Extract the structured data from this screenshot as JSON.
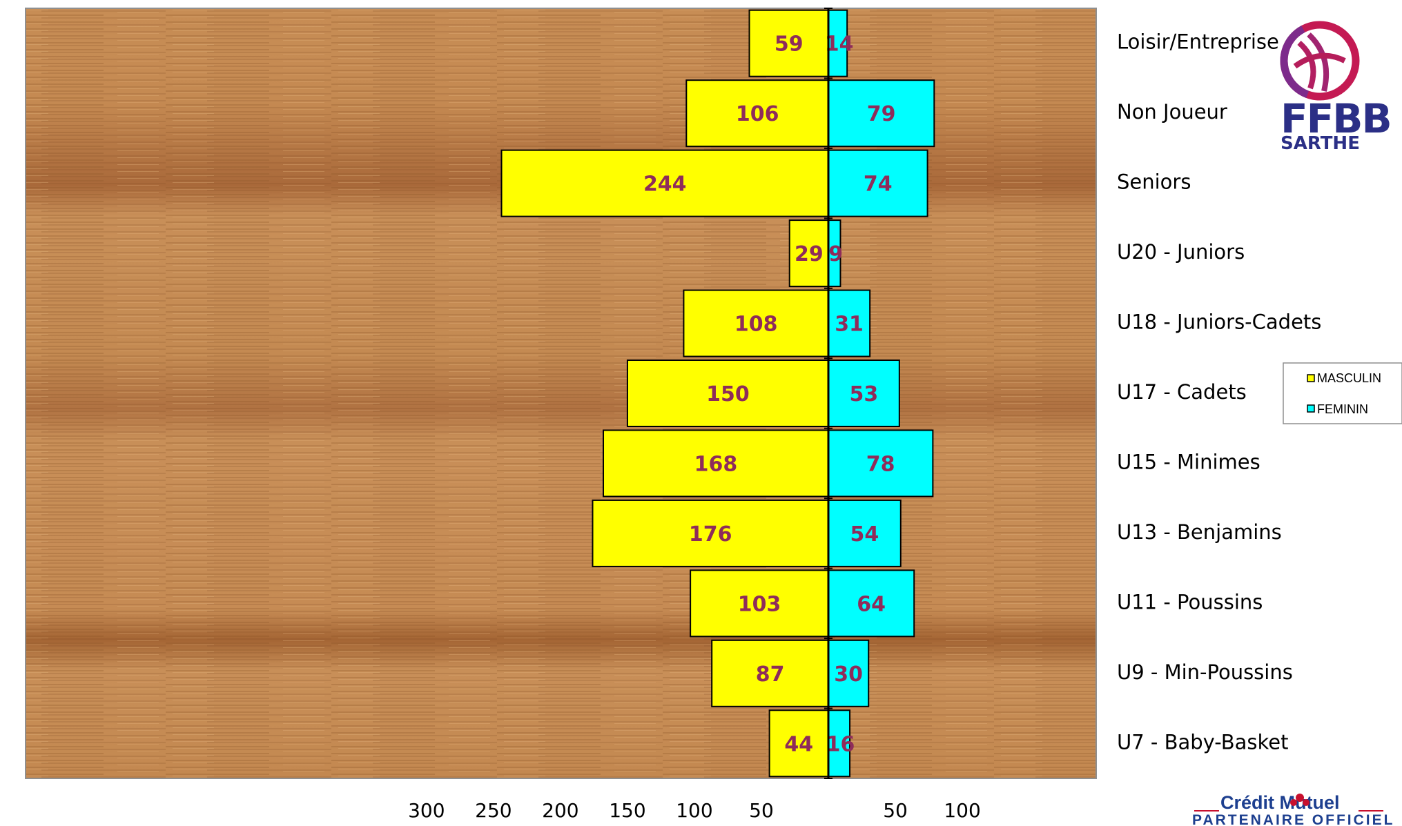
{
  "chart_data": {
    "type": "bar",
    "orientation": "horizontal-population-pyramid",
    "categories": [
      "Loisir/Entreprise",
      "Non Joueur",
      "Seniors",
      "U20 - Juniors",
      "U18 - Juniors-Cadets",
      "U17 - Cadets",
      "U15 - Minimes",
      "U13 - Benjamins",
      "U11 - Poussins",
      "U9 - Min-Poussins",
      "U7 - Baby-Basket"
    ],
    "series": [
      {
        "name": "MASCULIN",
        "color": "#ffff00",
        "side": "left",
        "values": [
          59,
          106,
          244,
          29,
          108,
          150,
          168,
          176,
          103,
          87,
          44
        ]
      },
      {
        "name": "FEMININ",
        "color": "#00ffff",
        "side": "right",
        "values": [
          14,
          79,
          74,
          9,
          31,
          53,
          78,
          54,
          64,
          30,
          16
        ]
      }
    ],
    "x_left_ticks": [
      "300",
      "250",
      "200",
      "150",
      "100",
      "50"
    ],
    "x_right_ticks": [
      "50",
      "100"
    ],
    "xlim_left": [
      0,
      300
    ],
    "xlim_right": [
      0,
      100
    ],
    "legend_position": "right",
    "plot_background": "wood-texture"
  },
  "logos": {
    "ffbb_text": "FFBB",
    "ffbb_sub": "SARTHE",
    "ffbb_icon": "basketball-icon",
    "sponsor_brand": "Crédit Mutuel",
    "sponsor_tagline": "PARTENAIRE OFFICIEL",
    "sponsor_icon": "credit-mutuel-icon"
  }
}
